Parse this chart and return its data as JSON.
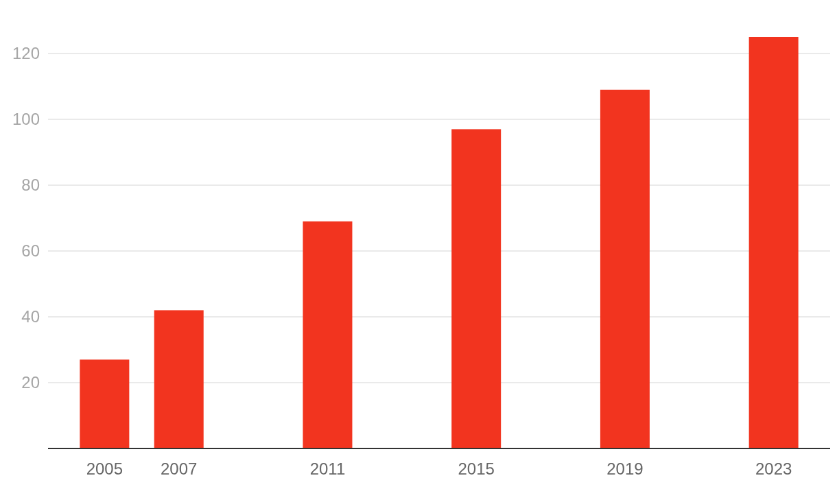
{
  "chart_data": {
    "type": "bar",
    "x": [
      2005,
      2007,
      2011,
      2015,
      2019,
      2023
    ],
    "values": [
      27,
      42,
      69,
      97,
      109,
      125
    ],
    "color": "#f2341f",
    "xlim": [
      2003.48,
      2024.52
    ],
    "xticks": [
      2005,
      2007,
      2011,
      2015,
      2019,
      2023
    ],
    "ylim": [
      0,
      125
    ],
    "yticks": [
      20,
      40,
      60,
      80,
      100,
      120
    ],
    "grid": "y"
  }
}
